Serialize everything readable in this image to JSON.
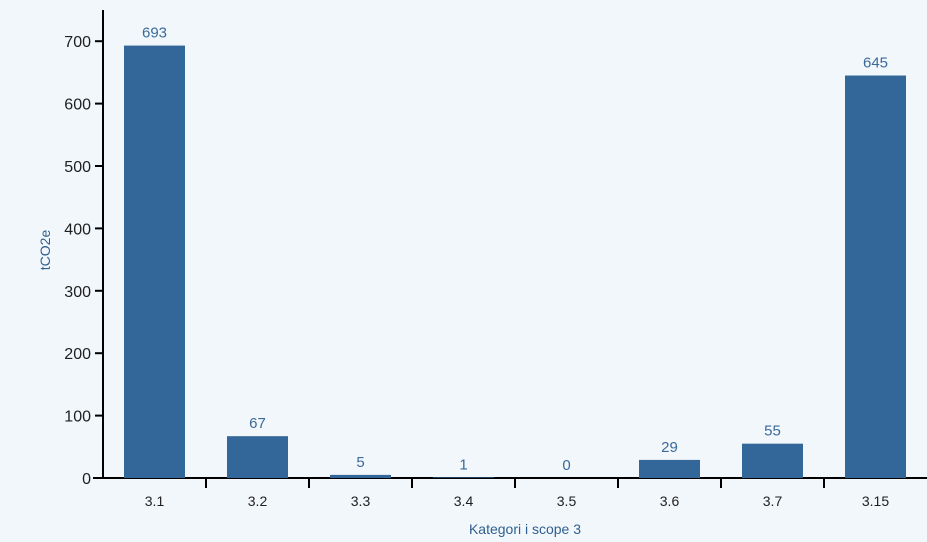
{
  "chart_data": {
    "type": "bar",
    "title": "",
    "xlabel": "Kategori i scope 3",
    "ylabel": "tCO2e",
    "categories": [
      "3.1",
      "3.2",
      "3.3",
      "3.4",
      "3.5",
      "3.6",
      "3.7",
      "3.15"
    ],
    "values": [
      693,
      67,
      5,
      1,
      0,
      29,
      55,
      645
    ],
    "data_labels": [
      "693",
      "67",
      "5",
      "1",
      "0",
      "29",
      "55",
      "645"
    ],
    "ylim": [
      0,
      750
    ],
    "yticks": [
      0,
      100,
      200,
      300,
      400,
      500,
      600,
      700
    ],
    "ytick_labels": [
      "0",
      "100",
      "200",
      "300",
      "400",
      "500",
      "600",
      "700"
    ],
    "grid": false,
    "legend": "none",
    "colors": {
      "bar": "#336699",
      "axis": "#000000",
      "label": "#3a6a9a",
      "background": "#f2f7fb"
    }
  }
}
